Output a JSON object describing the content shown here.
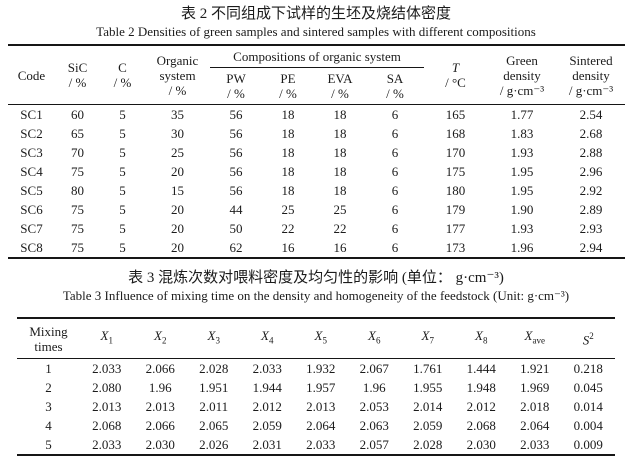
{
  "table2": {
    "title_cn": "表 2  不同组成下试样的生坯及烧结体密度",
    "title_en": "Table 2 Densities of green samples and sintered samples with different compositions",
    "headers": {
      "code": {
        "line1": "Code"
      },
      "sic": {
        "line1": "SiC",
        "line2": "/ %"
      },
      "c": {
        "line1": "C",
        "line2": "/ %"
      },
      "organic": {
        "line1": "Organic",
        "line2": "system",
        "line3": "/ %"
      },
      "compositions": {
        "label": "Compositions of organic system"
      },
      "pw": {
        "line1": "PW",
        "line2": "/ %"
      },
      "pe": {
        "line1": "PE",
        "line2": "/ %"
      },
      "eva": {
        "line1": "EVA",
        "line2": "/ %"
      },
      "sa": {
        "line1": "SA",
        "line2": "/ %"
      },
      "t": {
        "line1": "T",
        "line2": "/ °C"
      },
      "green": {
        "line1": "Green",
        "line2": "density",
        "line3": "/ g·cm⁻³"
      },
      "sintered": {
        "line1": "Sintered",
        "line2": "density",
        "line3": "/ g·cm⁻³"
      }
    },
    "rows": [
      [
        "SC1",
        "60",
        "5",
        "35",
        "56",
        "18",
        "18",
        "6",
        "165",
        "1.77",
        "2.54"
      ],
      [
        "SC2",
        "65",
        "5",
        "30",
        "56",
        "18",
        "18",
        "6",
        "168",
        "1.83",
        "2.68"
      ],
      [
        "SC3",
        "70",
        "5",
        "25",
        "56",
        "18",
        "18",
        "6",
        "170",
        "1.93",
        "2.88"
      ],
      [
        "SC4",
        "75",
        "5",
        "20",
        "56",
        "18",
        "18",
        "6",
        "175",
        "1.95",
        "2.96"
      ],
      [
        "SC5",
        "80",
        "5",
        "15",
        "56",
        "18",
        "18",
        "6",
        "180",
        "1.95",
        "2.92"
      ],
      [
        "SC6",
        "75",
        "5",
        "20",
        "44",
        "25",
        "25",
        "6",
        "179",
        "1.90",
        "2.89"
      ],
      [
        "SC7",
        "75",
        "5",
        "20",
        "50",
        "22",
        "22",
        "6",
        "177",
        "1.93",
        "2.93"
      ],
      [
        "SC8",
        "75",
        "5",
        "20",
        "62",
        "16",
        "16",
        "6",
        "173",
        "1.96",
        "2.94"
      ]
    ]
  },
  "table3": {
    "title_cn": "表 3  混炼次数对喂料密度及均匀性的影响 (单位： g·cm⁻³)",
    "title_en": "Table 3 Influence of mixing time on the density and homogeneity of the feedstock (Unit: g·cm⁻³)",
    "headers": {
      "mixing": {
        "line1": "Mixing",
        "line2": "times"
      },
      "x1": {
        "base": "X",
        "sub": "1"
      },
      "x2": {
        "base": "X",
        "sub": "2"
      },
      "x3": {
        "base": "X",
        "sub": "3"
      },
      "x4": {
        "base": "X",
        "sub": "4"
      },
      "x5": {
        "base": "X",
        "sub": "5"
      },
      "x6": {
        "base": "X",
        "sub": "6"
      },
      "x7": {
        "base": "X",
        "sub": "7"
      },
      "x8": {
        "base": "X",
        "sub": "8"
      },
      "xave": {
        "base": "X",
        "sub": "ave"
      },
      "s2": {
        "base": "S",
        "sup": "2"
      }
    },
    "rows": [
      [
        "1",
        "2.033",
        "2.066",
        "2.028",
        "2.033",
        "1.932",
        "2.067",
        "1.761",
        "1.444",
        "1.921",
        "0.218"
      ],
      [
        "2",
        "2.080",
        "1.96",
        "1.951",
        "1.944",
        "1.957",
        "1.96",
        "1.955",
        "1.948",
        "1.969",
        "0.045"
      ],
      [
        "3",
        "2.013",
        "2.013",
        "2.011",
        "2.012",
        "2.013",
        "2.053",
        "2.014",
        "2.012",
        "2.018",
        "0.014"
      ],
      [
        "4",
        "2.068",
        "2.066",
        "2.065",
        "2.059",
        "2.064",
        "2.063",
        "2.059",
        "2.068",
        "2.064",
        "0.004"
      ],
      [
        "5",
        "2.033",
        "2.030",
        "2.026",
        "2.031",
        "2.033",
        "2.057",
        "2.028",
        "2.030",
        "2.033",
        "0.009"
      ]
    ]
  }
}
